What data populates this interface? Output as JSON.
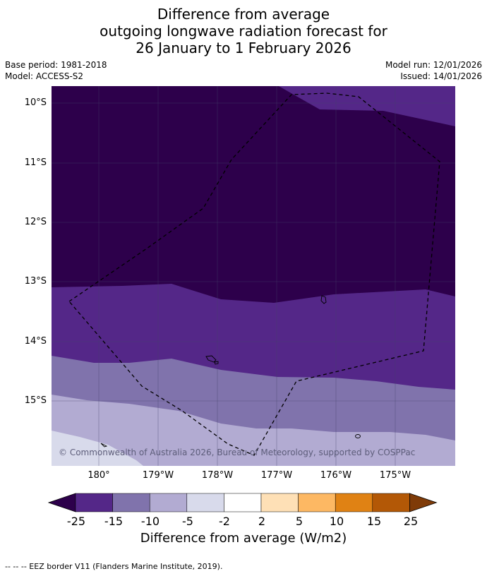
{
  "title": {
    "line1": "Difference from average",
    "line2": "outgoing longwave radiation forecast for",
    "line3": "26 January to 1 February 2026"
  },
  "meta": {
    "base_period": "Base period: 1981-2018",
    "model": "Model: ACCESS-S2",
    "model_run": "Model run: 12/01/2026",
    "issued": "Issued: 14/01/2026"
  },
  "map": {
    "lat_labels": [
      "10°S",
      "11°S",
      "12°S",
      "13°S",
      "14°S",
      "15°S"
    ],
    "lon_labels": [
      "180°",
      "179°W",
      "178°W",
      "177°W",
      "176°W",
      "175°W"
    ],
    "copyright": "© Commonwealth of Australia 2026, Bureau of Meteorology, supported by COSPPac"
  },
  "colorbar": {
    "ticks": [
      "-25",
      "-15",
      "-10",
      "-5",
      "-2",
      "2",
      "5",
      "10",
      "15",
      "25"
    ],
    "colors": [
      "#2d004b",
      "#542788",
      "#8073ac",
      "#b2abd2",
      "#d8daeb",
      "#ffffff",
      "#fee0b6",
      "#fdb863",
      "#e08214",
      "#b35806",
      "#7f3b08"
    ],
    "title": "Difference from average (W/m2)"
  },
  "footer": "--  --  -- EEZ border V11 (Flanders Marine Institute, 2019)."
}
